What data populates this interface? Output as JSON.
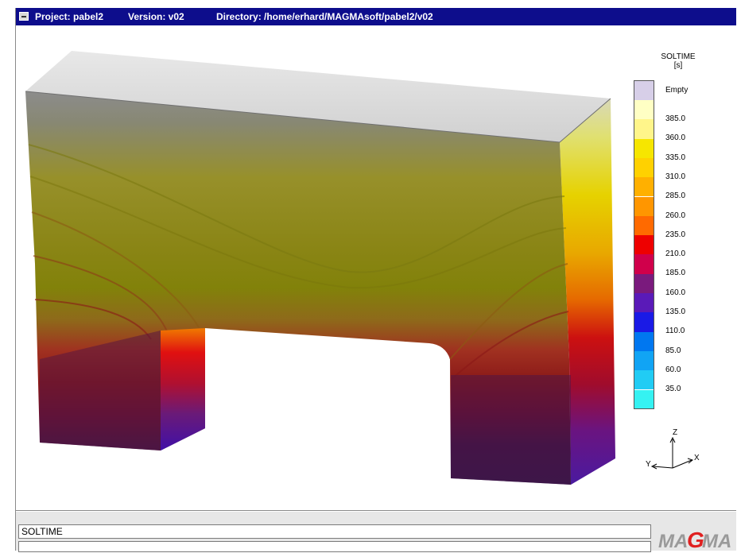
{
  "titlebar": {
    "project": "Project: pabel2",
    "version": "Version: v02",
    "directory": "Directory: /home/erhard/MAGMAsoft/pabel2/v02"
  },
  "legend": {
    "title": "SOLTIME",
    "unit": "[s]",
    "empty_label": "Empty",
    "empty_color": "#d7cfe8",
    "entries": [
      {
        "label": "385.0",
        "color": "#ffffc4"
      },
      {
        "label": "360.0",
        "color": "#fff58a"
      },
      {
        "label": "335.0",
        "color": "#f6e600"
      },
      {
        "label": "310.0",
        "color": "#ffd100"
      },
      {
        "label": "285.0",
        "color": "#ffb000"
      },
      {
        "label": "260.0",
        "color": "#ff9600"
      },
      {
        "label": "235.0",
        "color": "#ff6a00"
      },
      {
        "label": "210.0",
        "color": "#ee0000"
      },
      {
        "label": "185.0",
        "color": "#d0004b"
      },
      {
        "label": "160.0",
        "color": "#7a1a7d"
      },
      {
        "label": "135.0",
        "color": "#5a1ab8"
      },
      {
        "label": "110.0",
        "color": "#1a1ae6"
      },
      {
        "label": "85.0",
        "color": "#0077f0"
      },
      {
        "label": "60.0",
        "color": "#11a4f4"
      },
      {
        "label": "35.0",
        "color": "#21ccf4"
      }
    ],
    "bottom_color": "#35f2f2"
  },
  "axes": {
    "z": "Z",
    "x": "X",
    "y": "Y"
  },
  "status": {
    "field1": "SOLTIME",
    "field2": ""
  },
  "logo": {
    "text": "MAGMA"
  }
}
